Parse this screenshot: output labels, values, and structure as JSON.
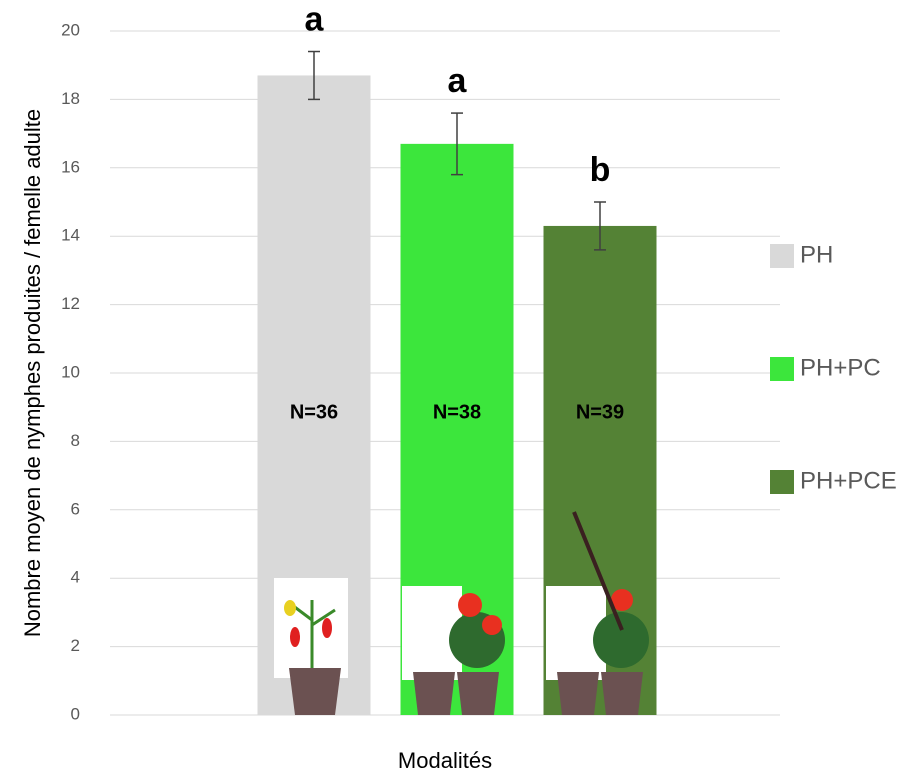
{
  "chart_data": {
    "type": "bar",
    "y_label": "Nombre moyen de nymphes produites / femelle adulte",
    "x_label": "Modalités",
    "categories": [
      "PH",
      "PH+PC",
      "PH+PCE"
    ],
    "values": [
      18.7,
      16.7,
      14.3
    ],
    "errors": [
      0.7,
      0.9,
      0.7
    ],
    "colors": [
      "#d9d9d9",
      "#3ce63c",
      "#548235"
    ],
    "n_labels": [
      "N=36",
      "N=38",
      "N=39"
    ],
    "letters": [
      "a",
      "a",
      "b"
    ],
    "ylim": [
      0,
      20
    ],
    "yticks": [
      0,
      2,
      4,
      6,
      8,
      10,
      12,
      14,
      16,
      18,
      20
    ],
    "grid": true,
    "legend": "right"
  }
}
